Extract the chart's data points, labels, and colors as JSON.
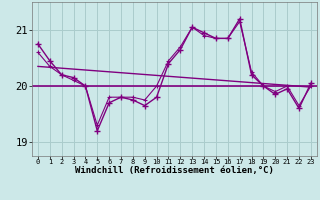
{
  "xlabel": "Windchill (Refroidissement éolien,°C)",
  "bg_color": "#cce8e8",
  "line_color": "#800080",
  "grid_color": "#aacccc",
  "x_hours": [
    0,
    1,
    2,
    3,
    4,
    5,
    6,
    7,
    8,
    9,
    10,
    11,
    12,
    13,
    14,
    15,
    16,
    17,
    18,
    19,
    20,
    21,
    22,
    23
  ],
  "windchill": [
    20.75,
    20.45,
    20.2,
    20.15,
    20.0,
    19.2,
    19.7,
    19.8,
    19.75,
    19.65,
    19.8,
    20.4,
    20.65,
    21.05,
    20.95,
    20.85,
    20.85,
    21.2,
    20.2,
    20.0,
    19.85,
    19.95,
    19.6,
    20.05
  ],
  "temperature": [
    20.6,
    20.35,
    20.2,
    20.1,
    20.0,
    19.3,
    19.8,
    19.8,
    19.8,
    19.75,
    20.0,
    20.45,
    20.7,
    21.05,
    20.9,
    20.85,
    20.85,
    21.15,
    20.25,
    20.0,
    19.9,
    20.0,
    19.65,
    20.0
  ],
  "trend_y_start": 20.35,
  "trend_y_end": 19.98,
  "mean_line": 20.0,
  "ylim": [
    18.75,
    21.5
  ],
  "yticks": [
    19,
    20,
    21
  ],
  "xlim": [
    -0.5,
    23.5
  ]
}
